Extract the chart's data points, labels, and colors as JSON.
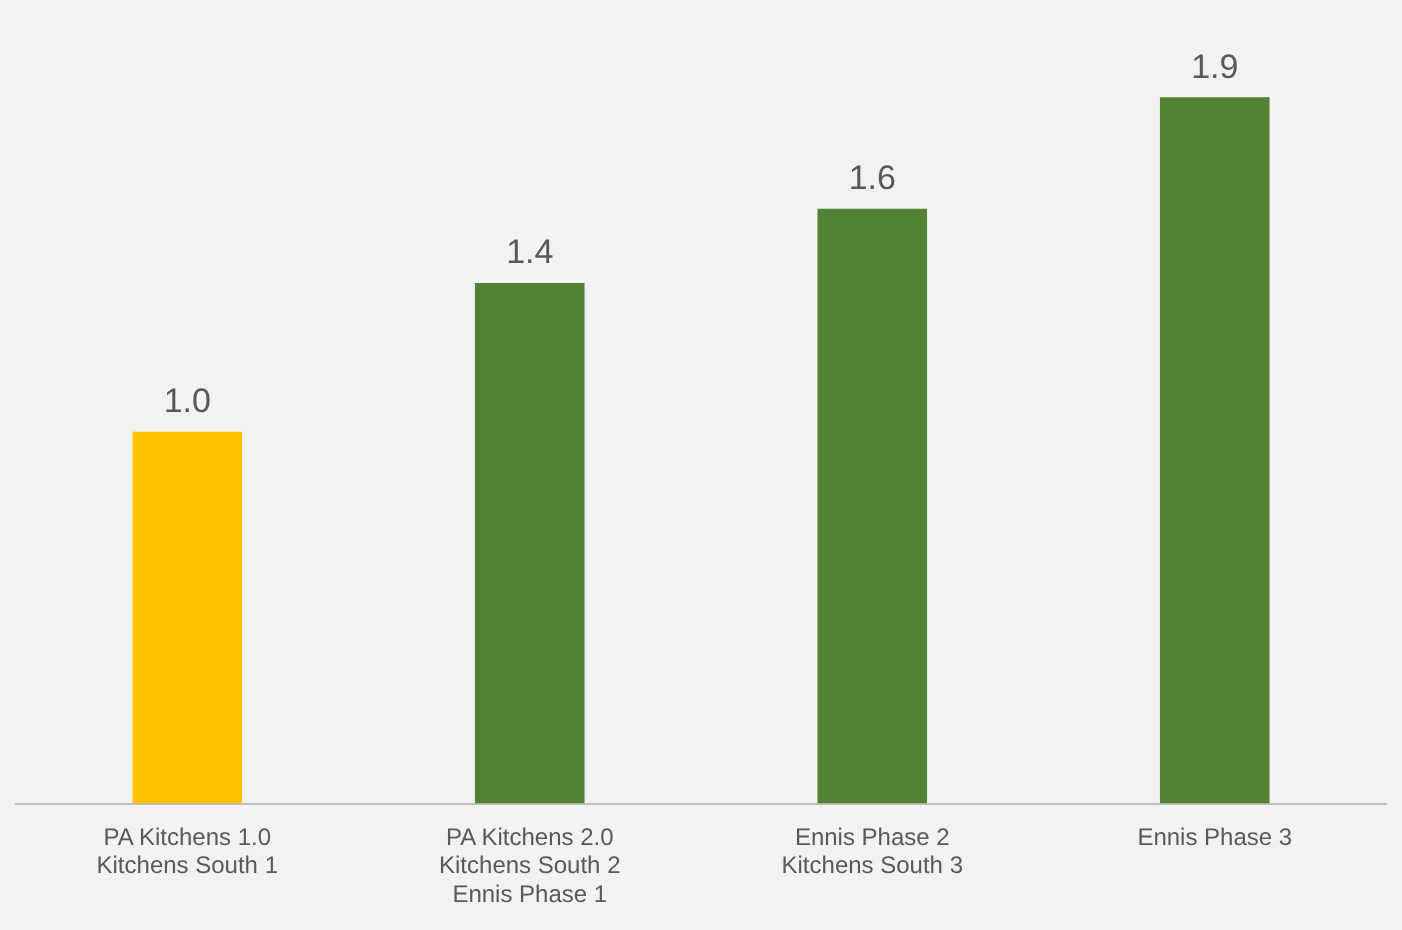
{
  "chart_data": {
    "type": "bar",
    "categories": [
      "PA Kitchens 1.0\nKitchens South 1",
      "PA Kitchens 2.0\nKitchens South 2\nEnnis Phase 1",
      "Ennis Phase 2\nKitchens South 3",
      "Ennis Phase 3"
    ],
    "values": [
      1.0,
      1.4,
      1.6,
      1.9
    ],
    "colors": [
      "#ffc000",
      "#548235",
      "#548235",
      "#548235"
    ],
    "value_labels": [
      "1.0",
      "1.4",
      "1.6",
      "1.9"
    ],
    "tick_labels": "x",
    "grid": false,
    "legend": false
  }
}
